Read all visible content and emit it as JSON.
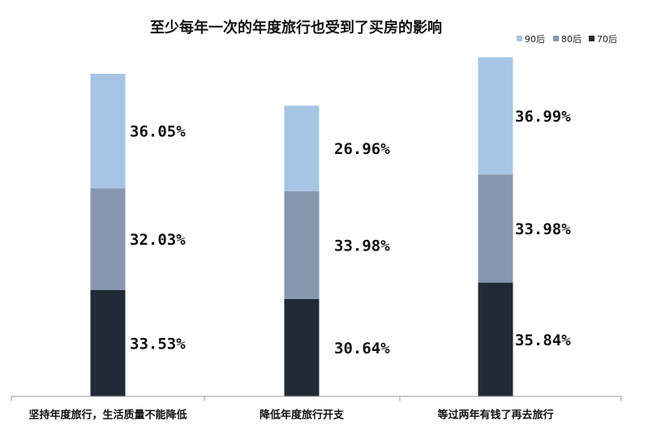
{
  "chart_data": {
    "type": "bar",
    "stacked": true,
    "title": "至少每年一次的年度旅行也受到了买房的影响",
    "categories": [
      "坚持年度旅行，生活质量不能降低",
      "降低年度旅行开支",
      "等过两年有钱了再去旅行"
    ],
    "series": [
      {
        "name": "70后",
        "color": "#212a37",
        "values": [
          33.53,
          30.64,
          35.84
        ],
        "labels": [
          "33.53%",
          "30.64%",
          "35.84%"
        ]
      },
      {
        "name": "80后",
        "color": "#8797b0",
        "values": [
          32.03,
          33.98,
          33.98
        ],
        "labels": [
          "32.03%",
          "33.98%",
          "33.98%"
        ]
      },
      {
        "name": "90后",
        "color": "#a6c4e4",
        "values": [
          36.05,
          26.96,
          36.99
        ],
        "labels": [
          "36.05%",
          "26.96%",
          "36.99%"
        ]
      }
    ],
    "legend": {
      "position": "top-right",
      "order": [
        "90后",
        "80后",
        "70后"
      ]
    },
    "ylim": [
      0,
      108
    ],
    "grid": false,
    "xlabel": "",
    "ylabel": ""
  }
}
